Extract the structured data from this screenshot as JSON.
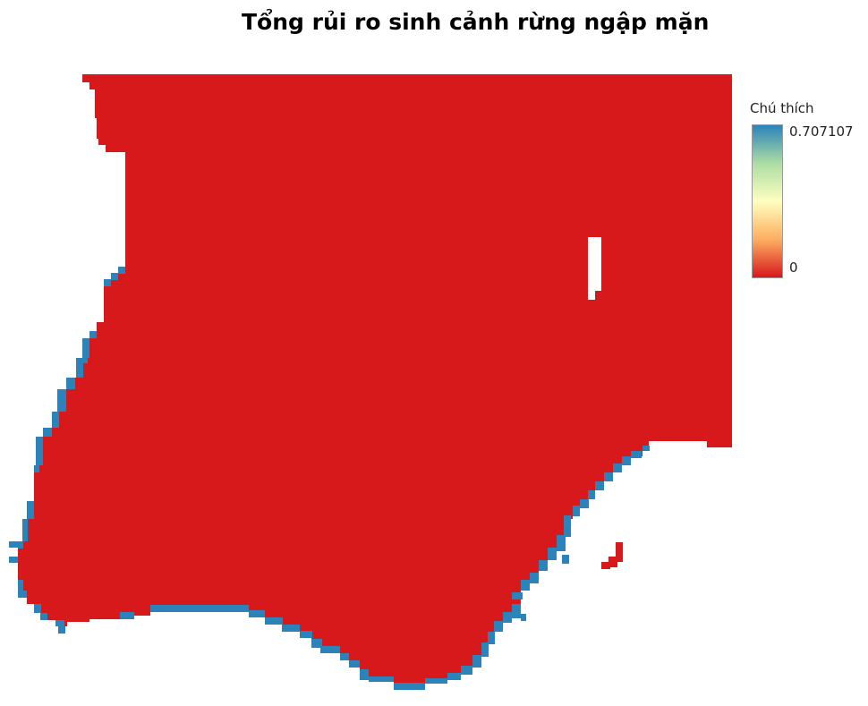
{
  "title": "Tổng rủi ro sinh cảnh rừng ngập mặn",
  "legend": {
    "title": "Chú thích",
    "max_label": "0.707107",
    "min_label": "0",
    "max_value": 0.707107,
    "min_value": 0,
    "ramp_colors": [
      "#2b83ba",
      "#abdda4",
      "#ffffbf",
      "#fdae61",
      "#d7191c"
    ]
  },
  "raster": {
    "colors": {
      "zero_risk": "#d7191c",
      "high_risk": "#2b83ba"
    }
  }
}
